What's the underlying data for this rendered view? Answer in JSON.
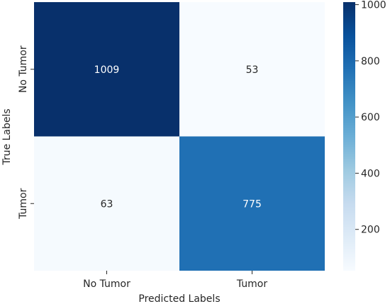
{
  "chart_data": {
    "type": "heatmap",
    "title": "",
    "xlabel": "Predicted Labels",
    "ylabel": "True Labels",
    "x_categories": [
      "No Tumor",
      "Tumor"
    ],
    "y_categories": [
      "No Tumor",
      "Tumor"
    ],
    "values": [
      [
        1009,
        53
      ],
      [
        63,
        775
      ]
    ],
    "colorbar": {
      "min": 53,
      "max": 1009,
      "ticks": [
        200,
        400,
        600,
        800,
        1000
      ],
      "colormap": "Blues"
    }
  }
}
